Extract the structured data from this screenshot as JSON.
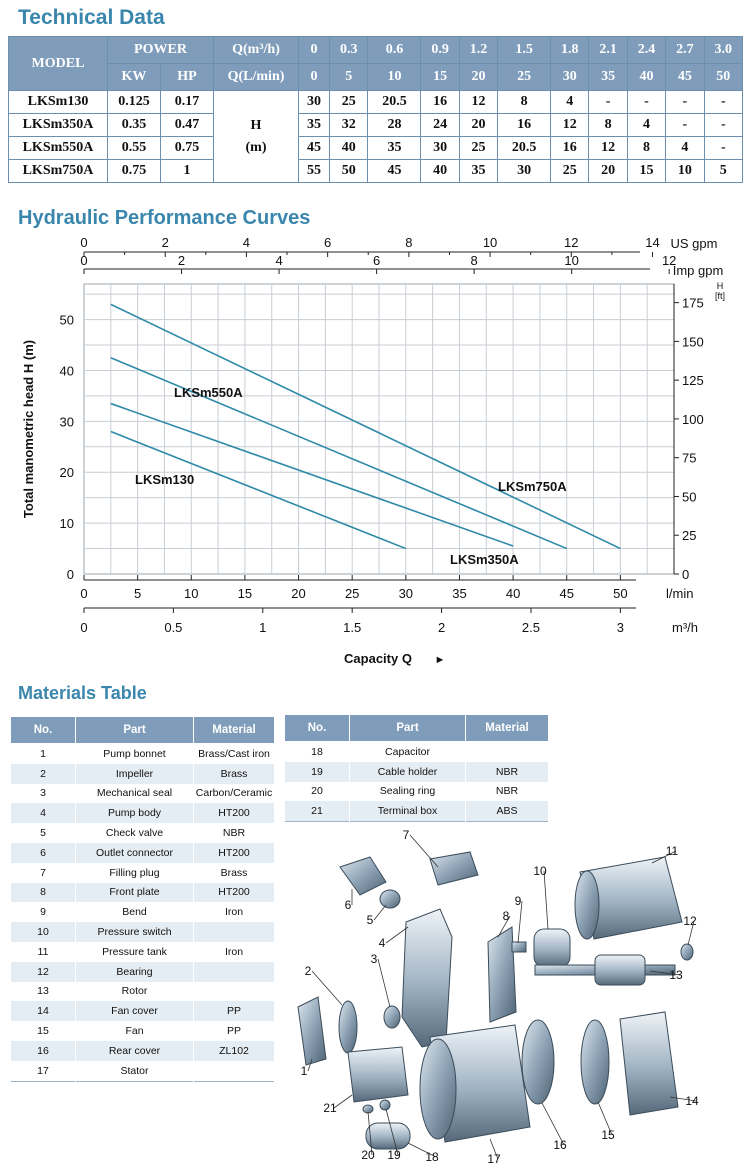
{
  "technical": {
    "title": "Technical Data",
    "header": {
      "model": "MODEL",
      "power": "POWER",
      "kw": "KW",
      "hp": "HP",
      "q_m3h_label": "Q(m³/h)",
      "q_lmin_label": "Q(L/min)",
      "q_m3h": [
        "0",
        "0.3",
        "0.6",
        "0.9",
        "1.2",
        "1.5",
        "1.8",
        "2.1",
        "2.4",
        "2.7",
        "3.0"
      ],
      "q_lmin": [
        "0",
        "5",
        "10",
        "15",
        "20",
        "25",
        "30",
        "35",
        "40",
        "45",
        "50"
      ]
    },
    "head_label": "H",
    "head_unit": "(m)",
    "rows": [
      {
        "model": "LKSm130",
        "kw": "0.125",
        "hp": "0.17",
        "values": [
          "30",
          "25",
          "20.5",
          "16",
          "12",
          "8",
          "4",
          "-",
          "-",
          "-",
          "-"
        ]
      },
      {
        "model": "LKSm350A",
        "kw": "0.35",
        "hp": "0.47",
        "values": [
          "35",
          "32",
          "28",
          "24",
          "20",
          "16",
          "12",
          "8",
          "4",
          "-",
          "-"
        ]
      },
      {
        "model": "LKSm550A",
        "kw": "0.55",
        "hp": "0.75",
        "values": [
          "45",
          "40",
          "35",
          "30",
          "25",
          "20.5",
          "16",
          "12",
          "8",
          "4",
          "-"
        ]
      },
      {
        "model": "LKSm750A",
        "kw": "0.75",
        "hp": "1",
        "values": [
          "55",
          "50",
          "45",
          "40",
          "35",
          "30",
          "25",
          "20",
          "15",
          "10",
          "5"
        ]
      }
    ]
  },
  "curves": {
    "title": "Hydraulic Performance Curves",
    "us_gpm_label": "US gpm",
    "us_gpm_ticks": [
      "0",
      "2",
      "4",
      "6",
      "8",
      "10",
      "12",
      "14"
    ],
    "imp_gpm_label": "Imp gpm",
    "imp_gpm_ticks": [
      "0",
      "2",
      "4",
      "6",
      "8",
      "10",
      "12"
    ],
    "ft_label": "H",
    "ft_unit": "[ft]",
    "ft_ticks": [
      "0",
      "25",
      "50",
      "75",
      "100",
      "125",
      "150",
      "175"
    ],
    "ylabel": "Total manometric head H (m)",
    "lmin_label": "l/min",
    "m3h_label": "m³/h",
    "m3h_ticks": [
      "0",
      "0.5",
      "1",
      "1.5",
      "2",
      "2.5",
      "3"
    ],
    "xlabel": "Capacity Q",
    "xlabel_arrow": "►"
  },
  "chart_data": {
    "type": "line",
    "title": "Hydraulic Performance Curves",
    "xlabel": "Capacity Q (l/min)",
    "ylabel": "Total manometric head H (m)",
    "xlim": [
      0,
      55
    ],
    "ylim": [
      0,
      57
    ],
    "x_ticks": [
      0,
      5,
      10,
      15,
      20,
      25,
      30,
      35,
      40,
      45,
      50
    ],
    "y_ticks": [
      0,
      10,
      20,
      30,
      40,
      50
    ],
    "grid": true,
    "line_color": "#2e8aa8",
    "series": [
      {
        "name": "LKSm130",
        "x": [
          2.5,
          30
        ],
        "y": [
          28,
          5
        ]
      },
      {
        "name": "LKSm350A",
        "x": [
          2.5,
          40
        ],
        "y": [
          33.5,
          5.5
        ]
      },
      {
        "name": "LKSm550A",
        "x": [
          2.5,
          45
        ],
        "y": [
          42.5,
          5
        ]
      },
      {
        "name": "LKSm750A",
        "x": [
          2.5,
          50
        ],
        "y": [
          53,
          5
        ]
      }
    ]
  },
  "materials": {
    "title": "Materials Table",
    "headers": {
      "no": "No.",
      "part": "Part",
      "material": "Material"
    },
    "left": [
      {
        "no": "1",
        "part": "Pump bonnet",
        "material": "Brass/Cast iron"
      },
      {
        "no": "2",
        "part": "Impeller",
        "material": "Brass"
      },
      {
        "no": "3",
        "part": "Mechanical seal",
        "material": "Carbon/Ceramic"
      },
      {
        "no": "4",
        "part": "Pump body",
        "material": "HT200"
      },
      {
        "no": "5",
        "part": "Check valve",
        "material": "NBR"
      },
      {
        "no": "6",
        "part": "Outlet connector",
        "material": "HT200"
      },
      {
        "no": "7",
        "part": "Filling plug",
        "material": "Brass"
      },
      {
        "no": "8",
        "part": "Front plate",
        "material": "HT200"
      },
      {
        "no": "9",
        "part": "Bend",
        "material": "Iron"
      },
      {
        "no": "10",
        "part": "Pressure switch",
        "material": ""
      },
      {
        "no": "11",
        "part": "Pressure tank",
        "material": "Iron"
      },
      {
        "no": "12",
        "part": "Bearing",
        "material": ""
      },
      {
        "no": "13",
        "part": "Rotor",
        "material": ""
      },
      {
        "no": "14",
        "part": "Fan cover",
        "material": "PP"
      },
      {
        "no": "15",
        "part": "Fan",
        "material": "PP"
      },
      {
        "no": "16",
        "part": "Rear cover",
        "material": "ZL102"
      },
      {
        "no": "17",
        "part": "Stator",
        "material": ""
      }
    ],
    "right": [
      {
        "no": "18",
        "part": "Capacitor",
        "material": ""
      },
      {
        "no": "19",
        "part": "Cable holder",
        "material": "NBR"
      },
      {
        "no": "20",
        "part": "Sealing ring",
        "material": "NBR"
      },
      {
        "no": "21",
        "part": "Terminal box",
        "material": "ABS"
      }
    ]
  },
  "diagram": {
    "labels": [
      "1",
      "2",
      "3",
      "4",
      "5",
      "6",
      "7",
      "8",
      "9",
      "10",
      "11",
      "12",
      "13",
      "14",
      "15",
      "16",
      "17",
      "18",
      "19",
      "20",
      "21"
    ]
  }
}
